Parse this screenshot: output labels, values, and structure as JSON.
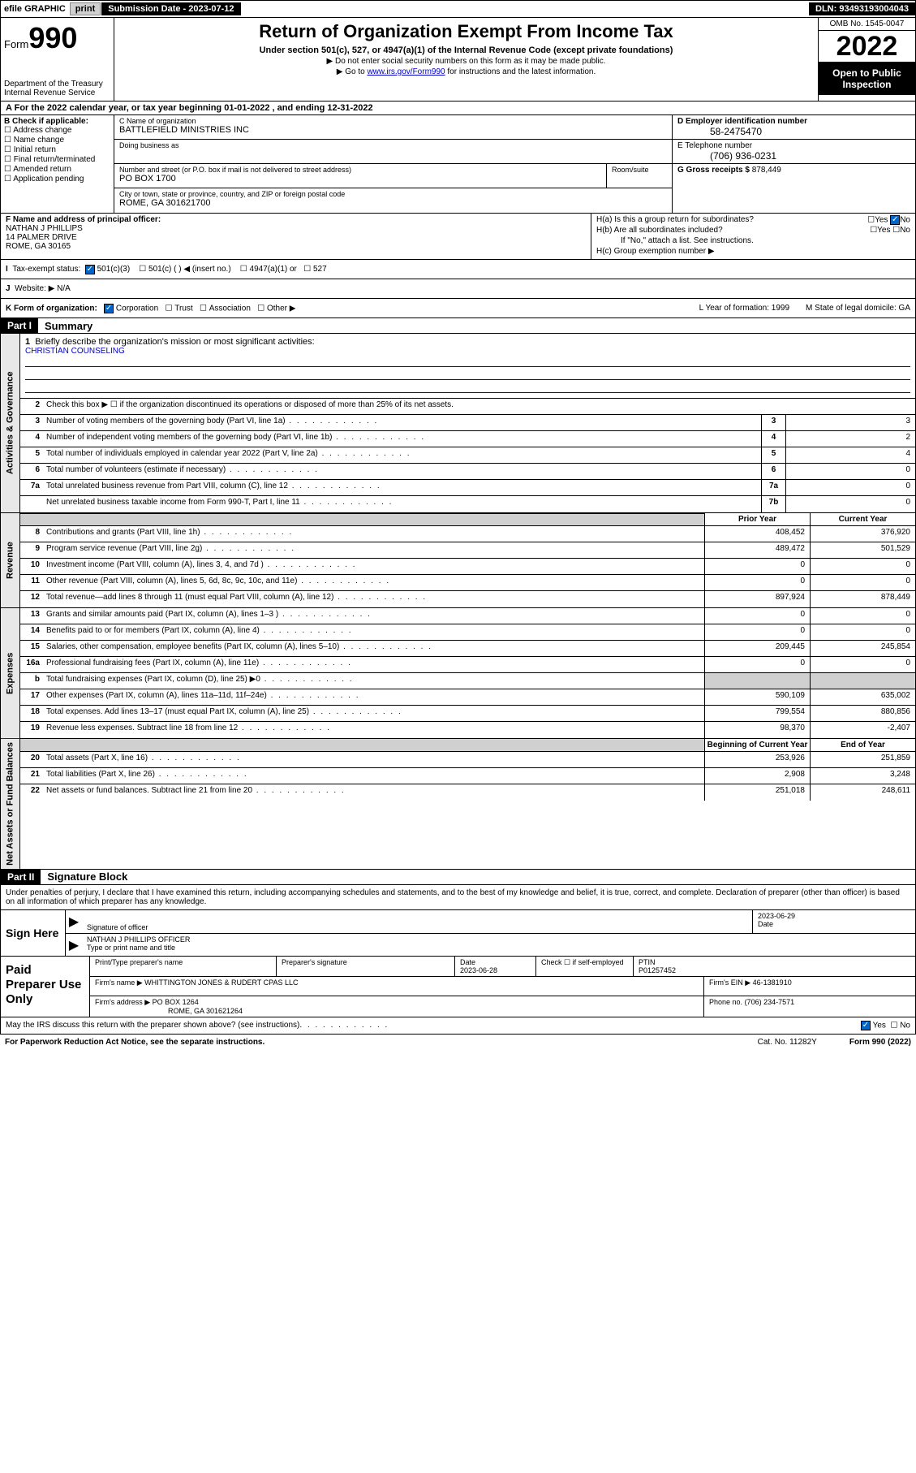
{
  "topbar": {
    "efile": "efile GRAPHIC",
    "print": "print",
    "sub_label": "Submission Date - 2023-07-12",
    "dln": "DLN: 93493193004043"
  },
  "header": {
    "form_prefix": "Form",
    "form_num": "990",
    "dept": "Department of the Treasury",
    "irs": "Internal Revenue Service",
    "title": "Return of Organization Exempt From Income Tax",
    "subtitle": "Under section 501(c), 527, or 4947(a)(1) of the Internal Revenue Code (except private foundations)",
    "note1": "▶ Do not enter social security numbers on this form as it may be made public.",
    "note2_pre": "▶ Go to ",
    "note2_link": "www.irs.gov/Form990",
    "note2_post": " for instructions and the latest information.",
    "omb": "OMB No. 1545-0047",
    "year": "2022",
    "open": "Open to Public Inspection"
  },
  "rowA": "For the 2022 calendar year, or tax year beginning 01-01-2022   , and ending 12-31-2022",
  "colB": {
    "label": "B Check if applicable:",
    "opts": [
      "Address change",
      "Name change",
      "Initial return",
      "Final return/terminated",
      "Amended return",
      "Application pending"
    ]
  },
  "colC": {
    "name_lbl": "C Name of organization",
    "name": "BATTLEFIELD MINISTRIES INC",
    "dba_lbl": "Doing business as",
    "addr_lbl": "Number and street (or P.O. box if mail is not delivered to street address)",
    "room_lbl": "Room/suite",
    "addr": "PO BOX 1700",
    "city_lbl": "City or town, state or province, country, and ZIP or foreign postal code",
    "city": "ROME, GA  301621700"
  },
  "colDE": {
    "d_lbl": "D Employer identification number",
    "d_val": "58-2475470",
    "e_lbl": "E Telephone number",
    "e_val": "(706) 936-0231",
    "g_lbl": "G Gross receipts $",
    "g_val": "878,449"
  },
  "rowF": {
    "lbl": "F Name and address of principal officer:",
    "name": "NATHAN J PHILLIPS",
    "addr1": "14 PALMER DRIVE",
    "addr2": "ROME, GA  30165"
  },
  "rowH": {
    "ha": "H(a)  Is this a group return for subordinates?",
    "hb": "H(b)  Are all subordinates included?",
    "hb_note": "If \"No,\" attach a list. See instructions.",
    "hc": "H(c)  Group exemption number ▶"
  },
  "rowI": {
    "lbl": "Tax-exempt status:",
    "opts": [
      "501(c)(3)",
      "501(c) (  ) ◀ (insert no.)",
      "4947(a)(1) or",
      "527"
    ]
  },
  "rowJ": {
    "lbl": "Website: ▶",
    "val": "N/A"
  },
  "rowK": {
    "lbl": "K Form of organization:",
    "opts": [
      "Corporation",
      "Trust",
      "Association",
      "Other ▶"
    ]
  },
  "rowL": "L Year of formation: 1999",
  "rowM": "M State of legal domicile: GA",
  "part1": {
    "hdr": "Part I",
    "title": "Summary",
    "l1": "Briefly describe the organization's mission or most significant activities:",
    "mission": "CHRISTIAN COUNSELING",
    "l2": "Check this box ▶ ☐  if the organization discontinued its operations or disposed of more than 25% of its net assets.",
    "lines_gov": [
      {
        "n": "3",
        "d": "Number of voting members of the governing body (Part VI, line 1a)",
        "box": "3",
        "v": "3"
      },
      {
        "n": "4",
        "d": "Number of independent voting members of the governing body (Part VI, line 1b)",
        "box": "4",
        "v": "2"
      },
      {
        "n": "5",
        "d": "Total number of individuals employed in calendar year 2022 (Part V, line 2a)",
        "box": "5",
        "v": "4"
      },
      {
        "n": "6",
        "d": "Total number of volunteers (estimate if necessary)",
        "box": "6",
        "v": "0"
      },
      {
        "n": "7a",
        "d": "Total unrelated business revenue from Part VIII, column (C), line 12",
        "box": "7a",
        "v": "0"
      },
      {
        "n": "",
        "d": "Net unrelated business taxable income from Form 990-T, Part I, line 11",
        "box": "7b",
        "v": "0"
      }
    ],
    "hdr_prior": "Prior Year",
    "hdr_curr": "Current Year",
    "lines_rev": [
      {
        "n": "8",
        "d": "Contributions and grants (Part VIII, line 1h)",
        "p": "408,452",
        "c": "376,920"
      },
      {
        "n": "9",
        "d": "Program service revenue (Part VIII, line 2g)",
        "p": "489,472",
        "c": "501,529"
      },
      {
        "n": "10",
        "d": "Investment income (Part VIII, column (A), lines 3, 4, and 7d )",
        "p": "0",
        "c": "0"
      },
      {
        "n": "11",
        "d": "Other revenue (Part VIII, column (A), lines 5, 6d, 8c, 9c, 10c, and 11e)",
        "p": "0",
        "c": "0"
      },
      {
        "n": "12",
        "d": "Total revenue—add lines 8 through 11 (must equal Part VIII, column (A), line 12)",
        "p": "897,924",
        "c": "878,449"
      }
    ],
    "lines_exp": [
      {
        "n": "13",
        "d": "Grants and similar amounts paid (Part IX, column (A), lines 1–3 )",
        "p": "0",
        "c": "0"
      },
      {
        "n": "14",
        "d": "Benefits paid to or for members (Part IX, column (A), line 4)",
        "p": "0",
        "c": "0"
      },
      {
        "n": "15",
        "d": "Salaries, other compensation, employee benefits (Part IX, column (A), lines 5–10)",
        "p": "209,445",
        "c": "245,854"
      },
      {
        "n": "16a",
        "d": "Professional fundraising fees (Part IX, column (A), line 11e)",
        "p": "0",
        "c": "0"
      },
      {
        "n": "b",
        "d": "Total fundraising expenses (Part IX, column (D), line 25) ▶0",
        "p": "",
        "c": "",
        "shaded": true
      },
      {
        "n": "17",
        "d": "Other expenses (Part IX, column (A), lines 11a–11d, 11f–24e)",
        "p": "590,109",
        "c": "635,002"
      },
      {
        "n": "18",
        "d": "Total expenses. Add lines 13–17 (must equal Part IX, column (A), line 25)",
        "p": "799,554",
        "c": "880,856"
      },
      {
        "n": "19",
        "d": "Revenue less expenses. Subtract line 18 from line 12",
        "p": "98,370",
        "c": "-2,407"
      }
    ],
    "hdr_begin": "Beginning of Current Year",
    "hdr_end": "End of Year",
    "lines_net": [
      {
        "n": "20",
        "d": "Total assets (Part X, line 16)",
        "p": "253,926",
        "c": "251,859"
      },
      {
        "n": "21",
        "d": "Total liabilities (Part X, line 26)",
        "p": "2,908",
        "c": "3,248"
      },
      {
        "n": "22",
        "d": "Net assets or fund balances. Subtract line 21 from line 20",
        "p": "251,018",
        "c": "248,611"
      }
    ]
  },
  "part2": {
    "hdr": "Part II",
    "title": "Signature Block",
    "penalties": "Under penalties of perjury, I declare that I have examined this return, including accompanying schedules and statements, and to the best of my knowledge and belief, it is true, correct, and complete. Declaration of preparer (other than officer) is based on all information of which preparer has any knowledge."
  },
  "sign": {
    "here": "Sign Here",
    "sig_lbl": "Signature of officer",
    "date_lbl": "Date",
    "date": "2023-06-29",
    "name": "NATHAN J PHILLIPS  OFFICER",
    "name_lbl": "Type or print name and title"
  },
  "prep": {
    "here": "Paid Preparer Use Only",
    "r1": {
      "c1_lbl": "Print/Type preparer's name",
      "c2_lbl": "Preparer's signature",
      "c3_lbl": "Date",
      "c3_val": "2023-06-28",
      "c4_lbl": "Check ☐ if self-employed",
      "c5_lbl": "PTIN",
      "c5_val": "P01257452"
    },
    "r2": {
      "c1_lbl": "Firm's name    ▶",
      "c1_val": "WHITTINGTON JONES & RUDERT CPAS LLC",
      "c2_lbl": "Firm's EIN ▶",
      "c2_val": "46-1381910"
    },
    "r3": {
      "c1_lbl": "Firm's address ▶",
      "c1_val": "PO BOX 1264",
      "c1_val2": "ROME, GA  301621264",
      "c2_lbl": "Phone no.",
      "c2_val": "(706) 234-7571"
    }
  },
  "discuss": "May the IRS discuss this return with the preparer shown above? (see instructions)",
  "footer": {
    "left": "For Paperwork Reduction Act Notice, see the separate instructions.",
    "mid": "Cat. No. 11282Y",
    "right": "Form 990 (2022)"
  },
  "tabs": {
    "gov": "Activities & Governance",
    "rev": "Revenue",
    "exp": "Expenses",
    "net": "Net Assets or Fund Balances"
  }
}
